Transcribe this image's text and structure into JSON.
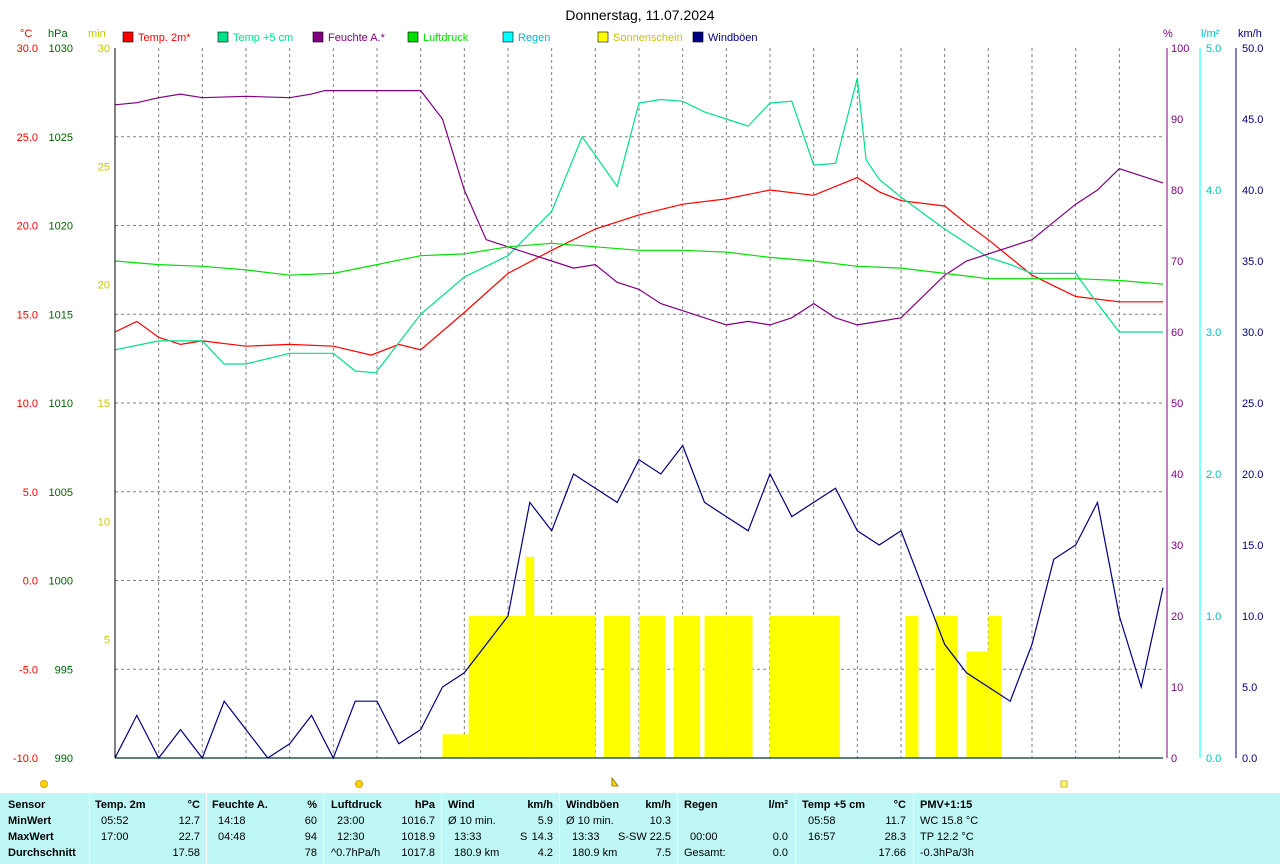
{
  "title": "Donnerstag, 11.07.2024",
  "colors": {
    "temp2m": "#ff0000",
    "temp5cm": "#00e08a",
    "feuchte": "#800080",
    "luftdruck": "#00e000",
    "regen": "#00ffff",
    "sonne": "#ffff00",
    "windboeen": "#000080",
    "grid": "#808080",
    "stats_bg": "#bff7f7"
  },
  "axis_units": {
    "temp": "°C",
    "press": "hPa",
    "sun": "min",
    "hum": "%",
    "rain": "l/m²",
    "wind": "km/h"
  },
  "legend": [
    {
      "label": "Temp. 2m*",
      "color": "#ff0000"
    },
    {
      "label": "Temp +5 cm",
      "color": "#00e08a"
    },
    {
      "label": "Feuchte A.*",
      "color": "#800080"
    },
    {
      "label": "Luftdruck",
      "color": "#00e000"
    },
    {
      "label": "Regen",
      "color": "#00ffff"
    },
    {
      "label": "Sonnenschein",
      "color": "#ffff00"
    },
    {
      "label": "Windböen",
      "color": "#000080"
    }
  ],
  "chart_data": {
    "type": "line",
    "title": "Donnerstag, 11.07.2024",
    "x_unit": "hour",
    "xlim": [
      0,
      24
    ],
    "grid": true,
    "legend_position": "top",
    "axes": {
      "temp": {
        "unit": "°C",
        "range": [
          -10,
          30
        ],
        "ticks": [
          "30.0",
          "25.0",
          "20.0",
          "15.0",
          "10.0",
          "5.0",
          "0.0",
          "-5.0",
          "-10.0"
        ]
      },
      "press": {
        "unit": "hPa",
        "range": [
          990,
          1030
        ],
        "ticks": [
          "1030",
          "1025",
          "1020",
          "1015",
          "1010",
          "1005",
          "1000",
          "995",
          "990"
        ]
      },
      "sun": {
        "unit": "min",
        "range": [
          0,
          30
        ],
        "ticks": [
          "30",
          "25",
          "20",
          "15",
          "10",
          "5"
        ]
      },
      "hum": {
        "unit": "%",
        "range": [
          0,
          100
        ],
        "ticks": [
          "100",
          "90",
          "80",
          "70",
          "60",
          "50",
          "40",
          "30",
          "20",
          "10",
          "0"
        ]
      },
      "rain": {
        "unit": "l/m²",
        "range": [
          0,
          5
        ],
        "ticks": [
          "5.0",
          "4.0",
          "3.0",
          "2.0",
          "1.0",
          "0.0"
        ]
      },
      "wind": {
        "unit": "km/h",
        "range": [
          0,
          50
        ],
        "ticks": [
          "50.0",
          "45.0",
          "40.0",
          "35.0",
          "30.0",
          "25.0",
          "20.0",
          "15.0",
          "10.0",
          "5.0",
          "0.0"
        ]
      }
    },
    "series": [
      {
        "name": "Temp. 2m*",
        "axis": "temp",
        "x": [
          0,
          0.5,
          1,
          1.5,
          2,
          3,
          4,
          5,
          5.87,
          6.5,
          7,
          8,
          9,
          10,
          11,
          12,
          13,
          14,
          15,
          16,
          17,
          17.5,
          18,
          19,
          19.5,
          20,
          21,
          22,
          23,
          23.5,
          24
        ],
        "y": [
          14,
          14.6,
          13.7,
          13.3,
          13.5,
          13.2,
          13.3,
          13.2,
          12.7,
          13.3,
          13.0,
          15.1,
          17.3,
          18.6,
          19.8,
          20.6,
          21.2,
          21.5,
          22.0,
          21.7,
          22.7,
          21.9,
          21.4,
          21.1,
          20.1,
          19.2,
          17.2,
          16.0,
          15.7,
          15.7,
          15.7
        ]
      },
      {
        "name": "Temp +5 cm",
        "axis": "temp",
        "x": [
          0,
          1,
          2,
          2.5,
          3,
          4,
          5,
          5.5,
          5.97,
          7,
          8,
          9,
          10,
          10.7,
          11.5,
          12,
          12.5,
          13,
          13.5,
          14,
          14.5,
          15,
          15.5,
          16,
          16.5,
          17,
          17.2,
          17.5,
          18,
          19,
          20,
          20.5,
          21,
          22,
          22.5,
          23,
          24
        ],
        "y": [
          13,
          13.5,
          13.5,
          12.2,
          12.2,
          12.8,
          12.8,
          11.8,
          11.7,
          15,
          17.1,
          18.3,
          20.8,
          25,
          22.2,
          26.9,
          27.1,
          27,
          26.4,
          26,
          25.6,
          26.9,
          27,
          23.4,
          23.5,
          28.3,
          23.7,
          22.6,
          21.6,
          19.8,
          18.2,
          17.8,
          17.3,
          17.3,
          15.6,
          14,
          14
        ]
      },
      {
        "name": "Feuchte A.*",
        "axis": "hum",
        "x": [
          0,
          0.5,
          1,
          1.5,
          2,
          3,
          4,
          4.5,
          4.8,
          5,
          5.5,
          6,
          7,
          7.5,
          8,
          8.5,
          9,
          9.5,
          10,
          10.5,
          11,
          11.5,
          12,
          12.5,
          13,
          13.5,
          14,
          14.5,
          15,
          15.5,
          16,
          16.5,
          17,
          17.5,
          18,
          19,
          19.5,
          20,
          21,
          22,
          22.5,
          23,
          23.5,
          24
        ],
        "y": [
          92,
          92.3,
          93,
          93.5,
          93,
          93.2,
          93,
          93.5,
          94,
          94,
          94,
          94,
          94,
          90,
          80,
          73,
          72,
          71,
          70,
          69,
          69.5,
          67,
          66,
          64,
          63,
          62,
          61,
          61.5,
          61,
          62,
          64,
          62,
          61,
          61.5,
          62,
          68,
          70,
          71,
          73,
          78,
          80,
          83,
          82,
          81
        ]
      },
      {
        "name": "Luftdruck",
        "axis": "press",
        "x": [
          0,
          1,
          2,
          3,
          4,
          5,
          6,
          7,
          8,
          9,
          10,
          11,
          12,
          13,
          14,
          15,
          16,
          17,
          18,
          19,
          20,
          21,
          22,
          23,
          24
        ],
        "y": [
          1018.0,
          1017.8,
          1017.7,
          1017.5,
          1017.2,
          1017.3,
          1017.8,
          1018.3,
          1018.4,
          1018.8,
          1019.0,
          1018.8,
          1018.6,
          1018.6,
          1018.5,
          1018.2,
          1018.0,
          1017.7,
          1017.6,
          1017.3,
          1017.0,
          1017.0,
          1017.0,
          1016.9,
          1016.7
        ]
      },
      {
        "name": "Regen",
        "axis": "rain",
        "x": [
          0,
          24
        ],
        "y": [
          0,
          0
        ]
      },
      {
        "name": "Windböen",
        "axis": "wind",
        "x": [
          0,
          0.5,
          1,
          1.5,
          2,
          2.5,
          3,
          3.5,
          4,
          4.5,
          5,
          5.5,
          6,
          6.5,
          7,
          7.5,
          8,
          8.5,
          9,
          9.5,
          10,
          10.5,
          11,
          11.5,
          12,
          12.5,
          13,
          13.5,
          14,
          14.5,
          15,
          15.5,
          16,
          16.5,
          17,
          17.5,
          18,
          18.5,
          19,
          19.5,
          20,
          20.5,
          21,
          21.5,
          22,
          22.5,
          23,
          23.5,
          24
        ],
        "y": [
          0,
          3,
          0,
          2,
          0,
          4,
          2,
          0,
          1,
          3,
          0,
          4,
          4,
          1,
          2,
          5,
          6,
          8,
          10,
          18,
          16,
          20,
          19,
          18,
          21,
          20,
          22,
          18,
          17,
          16,
          20,
          17,
          18,
          19,
          16,
          15,
          16,
          12,
          8,
          6,
          5,
          4,
          8,
          14,
          15,
          18,
          10,
          5,
          12
        ]
      },
      {
        "name": "Sonnenschein",
        "axis": "sun",
        "bars": [
          [
            7.5,
            8.1,
            1
          ],
          [
            8.1,
            8.5,
            6
          ],
          [
            8.5,
            9.4,
            6
          ],
          [
            9.4,
            9.6,
            8.5
          ],
          [
            9.6,
            11.0,
            6
          ],
          [
            11.2,
            11.8,
            6
          ],
          [
            12.0,
            12.6,
            6
          ],
          [
            12.8,
            13.4,
            6
          ],
          [
            13.5,
            14.0,
            6
          ],
          [
            14.0,
            14.6,
            6
          ],
          [
            15.0,
            16.6,
            6
          ],
          [
            18.1,
            18.4,
            6
          ],
          [
            18.8,
            19.3,
            6
          ],
          [
            19.5,
            20.0,
            4.5
          ],
          [
            20.0,
            20.3,
            6
          ]
        ]
      }
    ]
  },
  "stats": {
    "sensor": {
      "head": "Sensor",
      "min": "MinWert",
      "max": "MaxWert",
      "avg": "Durchschnitt"
    },
    "temp2m": {
      "head": "Temp. 2m",
      "unit": "°C",
      "min_time": "05:52",
      "min_val": "12.7",
      "max_time": "17:00",
      "max_val": "22.7",
      "avg_val": "17.58"
    },
    "feuchte": {
      "head": "Feuchte A.",
      "unit": "%",
      "min_time": "14:18",
      "min_val": "60",
      "max_time": "04:48",
      "max_val": "94",
      "avg_val": "78"
    },
    "luftdruck": {
      "head": "Luftdruck",
      "unit": "hPa",
      "min_time": "23:00",
      "min_val": "1016.7",
      "max_time": "12:30",
      "max_val": "1018.9",
      "avg_label": "^0.7hPa/h",
      "avg_val": "1017.8"
    },
    "wind": {
      "head": "Wind",
      "unit": "km/h",
      "min_label": "Ø 10 min.",
      "min_val": "5.9",
      "max_time": "13:33",
      "max_dir": "S",
      "max_val": "14.3",
      "avg_label": "180.9 km",
      "avg_val": "4.2"
    },
    "windboeen": {
      "head": "Windböen",
      "unit": "km/h",
      "min_label": "Ø 10 min.",
      "min_val": "10.3",
      "max_time": "13:33",
      "max_dir": "S-SW",
      "max_val": "22.5",
      "avg_label": "180.9 km",
      "avg_val": "7.5"
    },
    "regen": {
      "head": "Regen",
      "unit": "l/m²",
      "max_time": "00:00",
      "max_val": "0.0",
      "avg_label": "Gesamt:",
      "avg_val": "0.0"
    },
    "temp5cm": {
      "head": "Temp +5 cm",
      "unit": "°C",
      "min_time": "05:58",
      "min_val": "11.7",
      "max_time": "16:57",
      "max_val": "28.3",
      "avg_val": "17.66"
    },
    "pmv": {
      "head": "PMV+1:15",
      "wc": "WC 15.8 °C",
      "tp": "TP 12.2 °C",
      "trend": "-0.3hPa/3h"
    }
  }
}
